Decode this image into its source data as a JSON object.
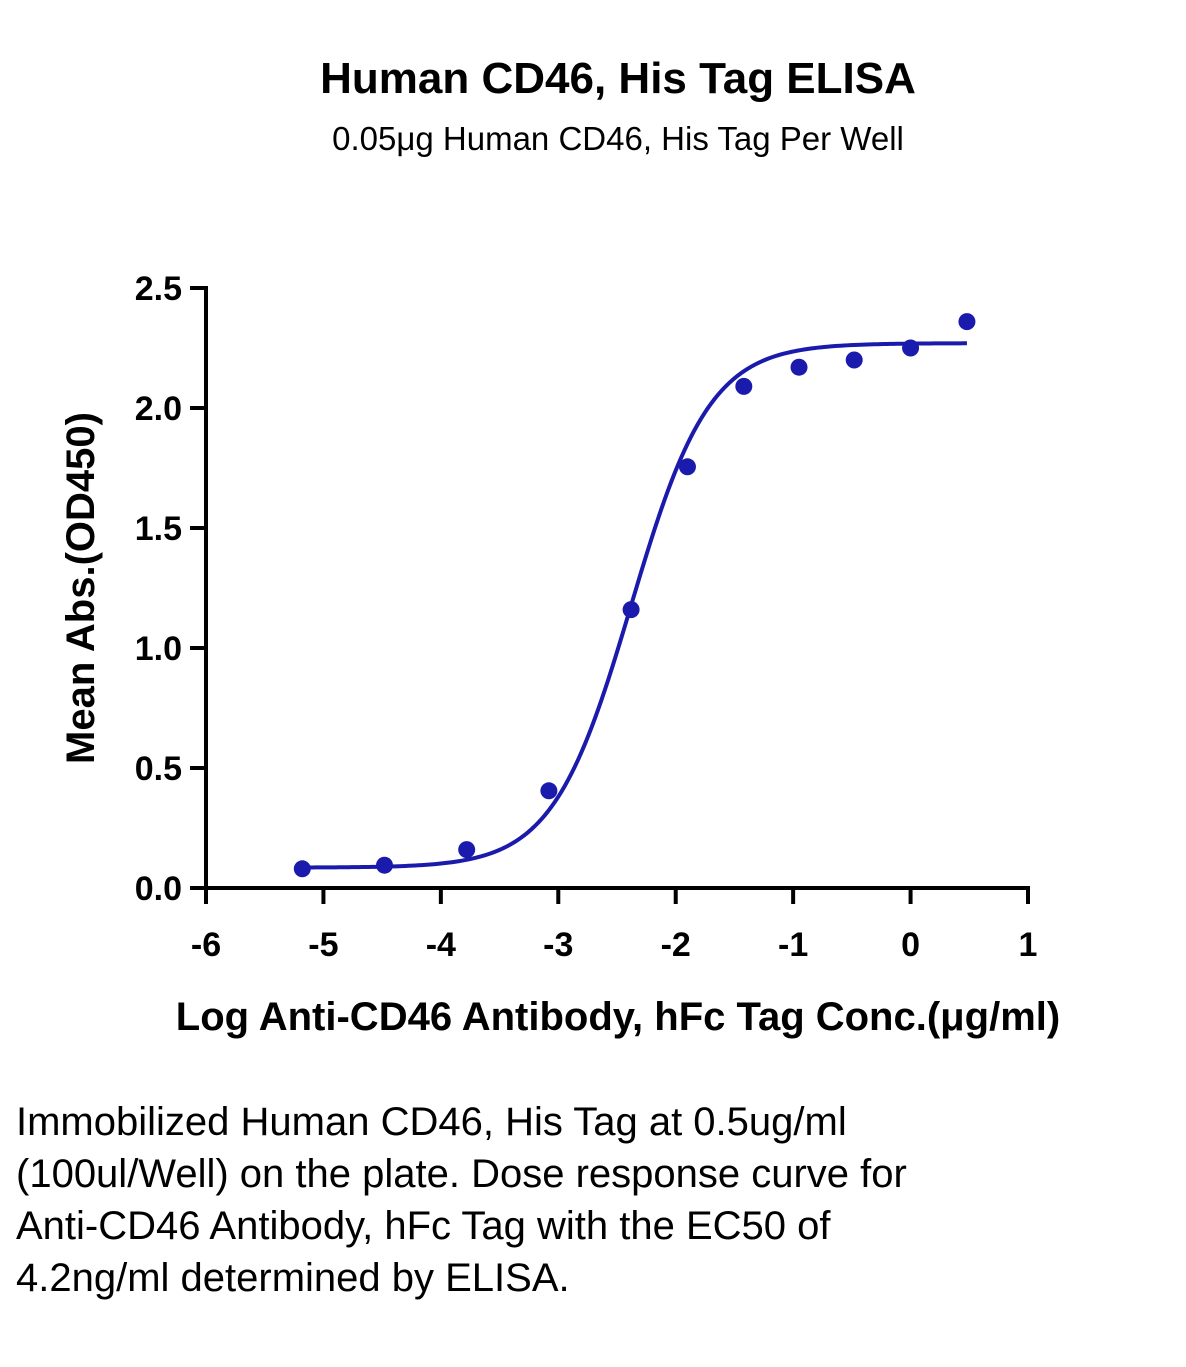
{
  "chart_data": {
    "type": "scatter",
    "title": "Human CD46, His Tag ELISA",
    "subtitle": "0.05μg Human CD46, His Tag Per Well",
    "xlabel": "Log Anti-CD46 Antibody, hFc Tag Conc.(μg/ml)",
    "ylabel": "Mean Abs.(OD450)",
    "xlim": [
      -6,
      1
    ],
    "ylim": [
      0,
      2.5
    ],
    "xticks": [
      -6,
      -5,
      -4,
      -3,
      -2,
      -1,
      0,
      1
    ],
    "xtick_labels": [
      "-6",
      "-5",
      "-4",
      "-3",
      "-2",
      "-1",
      "0",
      "1"
    ],
    "yticks": [
      0,
      0.5,
      1.0,
      1.5,
      2.0,
      2.5
    ],
    "ytick_labels": [
      "0.0",
      "0.5",
      "1.0",
      "1.5",
      "2.0",
      "2.5"
    ],
    "grid": false,
    "series": [
      {
        "color": "#1a1aad",
        "x": [
          -5.18,
          -4.48,
          -3.78,
          -3.08,
          -2.38,
          -1.9,
          -1.42,
          -0.95,
          -0.48,
          0.0,
          0.48
        ],
        "y": [
          0.08,
          0.095,
          0.16,
          0.405,
          1.16,
          1.755,
          2.09,
          2.17,
          2.2,
          2.25,
          2.36
        ]
      }
    ],
    "fit_curve": {
      "model": "4PL",
      "bottom": 0.085,
      "top": 2.27,
      "log_ec50": -2.38,
      "hill_slope": 1.3,
      "x_range": [
        -5.18,
        0.48
      ],
      "color": "#1a1aad"
    }
  },
  "caption": "Immobilized Human CD46, His Tag at 0.5ug/ml (100ul/Well) on the plate. Dose response curve for Anti-CD46 Antibody, hFc Tag with the EC50 of 4.2ng/ml determined by ELISA."
}
